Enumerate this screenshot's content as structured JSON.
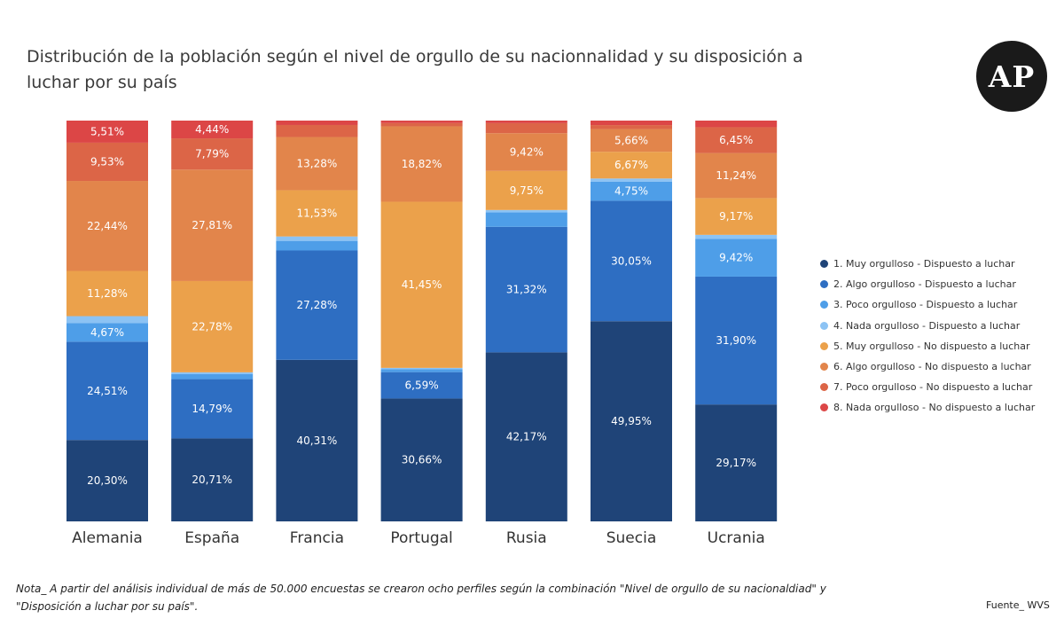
{
  "header": {
    "title": "Distribución de la población según el nivel de orgullo de su nacionnalidad y su disposición a luchar por su país",
    "logo_text": "AP"
  },
  "footer": {
    "note": "Nota_ A partir del análisis individual de más de 50.000 encuestas se crearon ocho perfiles según la combinación \"Nivel de orgullo de su nacionaldiad\" y \"Disposición a luchar por su país\".",
    "source": "Fuente_ WVS"
  },
  "chart_data": {
    "type": "bar",
    "stacked": true,
    "normalized_percent": true,
    "title": "Distribución de la población según el nivel de orgullo de su nacionnalidad y su disposición a luchar por su país",
    "xlabel": "",
    "ylabel": "",
    "ylim": [
      0,
      100
    ],
    "grid": false,
    "legend_position": "right",
    "categories": [
      "Alemania",
      "España",
      "Francia",
      "Portugal",
      "Rusia",
      "Suecia",
      "Ucrania"
    ],
    "series": [
      {
        "name": "1. Muy orgulloso - Dispuesto a luchar",
        "color": "#1f4478",
        "values": [
          20.3,
          20.71,
          40.31,
          30.66,
          42.17,
          49.95,
          29.17
        ],
        "labels": [
          "20,30%",
          "20,71%",
          "40,31%",
          "30,66%",
          "42,17%",
          "49,95%",
          "29,17%"
        ]
      },
      {
        "name": "2. Algo orgulloso - Dispuesto a luchar",
        "color": "#2e6ec2",
        "values": [
          24.51,
          14.79,
          27.28,
          6.59,
          31.32,
          30.05,
          31.9
        ],
        "labels": [
          "24,51%",
          "14,79%",
          "27,28%",
          "6,59%",
          "31,32%",
          "30,05%",
          "31,90%"
        ]
      },
      {
        "name": "3. Poco orgulloso - Dispuesto a luchar",
        "color": "#4e9ee8",
        "values": [
          4.67,
          1.3,
          2.4,
          0.7,
          3.6,
          4.75,
          9.42
        ],
        "labels": [
          "4,67%",
          "",
          "",
          "",
          "",
          "4,75%",
          "9,42%"
        ]
      },
      {
        "name": "4. Nada orgulloso - Dispuesto a luchar",
        "color": "#8cc3f4",
        "values": [
          1.7,
          0.4,
          1.1,
          0.35,
          0.6,
          0.8,
          1.0
        ],
        "labels": [
          "",
          "",
          "",
          "",
          "",
          "",
          ""
        ]
      },
      {
        "name": "5. Muy orgulloso - No dispuesto a luchar",
        "color": "#eba14b",
        "values": [
          11.28,
          22.78,
          11.53,
          41.45,
          9.75,
          6.67,
          9.17
        ],
        "labels": [
          "11,28%",
          "22,78%",
          "11,53%",
          "41,45%",
          "9,75%",
          "6,67%",
          "9,17%"
        ]
      },
      {
        "name": "6. Algo orgulloso - No dispuesto a luchar",
        "color": "#e2854b",
        "values": [
          22.44,
          27.81,
          13.28,
          18.82,
          9.42,
          5.66,
          11.24
        ],
        "labels": [
          "22,44%",
          "27,81%",
          "13,28%",
          "18,82%",
          "9,42%",
          "5,66%",
          "11,24%"
        ]
      },
      {
        "name": "7. Poco orgulloso - No dispuesto a luchar",
        "color": "#dc6547",
        "values": [
          9.53,
          7.79,
          3.0,
          0.8,
          2.5,
          1.0,
          6.45
        ],
        "labels": [
          "9,53%",
          "7,79%",
          "",
          "",
          "",
          "",
          "6,45%"
        ]
      },
      {
        "name": "8. Nada orgulloso - No dispuesto a luchar",
        "color": "#dc4646",
        "values": [
          5.51,
          4.44,
          1.1,
          0.63,
          0.64,
          1.12,
          1.65
        ],
        "labels": [
          "5,51%",
          "4,44%",
          "",
          "",
          "",
          "",
          ""
        ]
      }
    ]
  }
}
